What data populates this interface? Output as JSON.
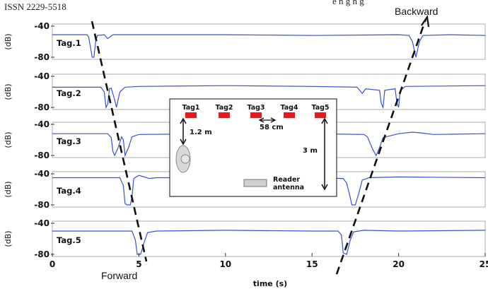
{
  "header": {
    "journal_fragment": "ISSN 2229-5518",
    "title_fragment": "e n g   n g"
  },
  "chart_data": {
    "type": "line",
    "xlabel": "time (s)",
    "xlim": [
      0,
      25
    ],
    "x_ticks": [
      "0",
      "5",
      "10",
      "15",
      "20",
      "25"
    ],
    "ylabel": "(dB)",
    "ylim": [
      -80,
      -40
    ],
    "y_ticks": [
      "-40",
      "-80"
    ],
    "line_color": "#3a4fd6",
    "panels": [
      {
        "name": "Tag.1",
        "baseline": -51,
        "points": [
          [
            0,
            -51
          ],
          [
            2.0,
            -51
          ],
          [
            2.1,
            -54
          ],
          [
            2.2,
            -67
          ],
          [
            2.3,
            -80
          ],
          [
            2.4,
            -80
          ],
          [
            2.5,
            -60
          ],
          [
            2.6,
            -52
          ],
          [
            3.0,
            -51
          ],
          [
            3.2,
            -56
          ],
          [
            3.5,
            -51
          ],
          [
            5,
            -51
          ],
          [
            10,
            -51
          ],
          [
            15,
            -52
          ],
          [
            20,
            -51
          ],
          [
            20.6,
            -52
          ],
          [
            20.8,
            -60
          ],
          [
            21.0,
            -80
          ],
          [
            21.2,
            -60
          ],
          [
            21.4,
            -52
          ],
          [
            23,
            -51
          ],
          [
            25,
            -52
          ]
        ]
      },
      {
        "name": "Tag.2",
        "baseline": -53,
        "points": [
          [
            0,
            -54
          ],
          [
            2.8,
            -54
          ],
          [
            3.0,
            -60
          ],
          [
            3.1,
            -80
          ],
          [
            3.2,
            -76
          ],
          [
            3.3,
            -56
          ],
          [
            3.4,
            -55
          ],
          [
            3.6,
            -70
          ],
          [
            3.7,
            -80
          ],
          [
            3.9,
            -60
          ],
          [
            4.2,
            -54
          ],
          [
            5,
            -53
          ],
          [
            10,
            -52
          ],
          [
            15,
            -53
          ],
          [
            17.6,
            -54
          ],
          [
            17.9,
            -62
          ],
          [
            18.1,
            -56
          ],
          [
            18.9,
            -58
          ],
          [
            19.0,
            -75
          ],
          [
            19.1,
            -80
          ],
          [
            19.2,
            -58
          ],
          [
            19.8,
            -56
          ],
          [
            19.9,
            -74
          ],
          [
            20.0,
            -80
          ],
          [
            20.1,
            -58
          ],
          [
            20.4,
            -53
          ],
          [
            25,
            -52
          ]
        ]
      },
      {
        "name": "Tag.3",
        "baseline": -52,
        "points": [
          [
            0,
            -52
          ],
          [
            3.2,
            -52
          ],
          [
            3.4,
            -57
          ],
          [
            3.5,
            -75
          ],
          [
            3.6,
            -80
          ],
          [
            3.8,
            -70
          ],
          [
            4.0,
            -56
          ],
          [
            4.1,
            -60
          ],
          [
            4.2,
            -80
          ],
          [
            4.4,
            -70
          ],
          [
            4.6,
            -56
          ],
          [
            5,
            -53
          ],
          [
            10,
            -52
          ],
          [
            15,
            -52
          ],
          [
            18.0,
            -53
          ],
          [
            18.2,
            -56
          ],
          [
            18.5,
            -72
          ],
          [
            18.7,
            -80
          ],
          [
            18.9,
            -70
          ],
          [
            19.1,
            -57
          ],
          [
            20,
            -52
          ],
          [
            20.8,
            -50
          ],
          [
            21.3,
            -51
          ],
          [
            22,
            -53
          ],
          [
            25,
            -52
          ]
        ]
      },
      {
        "name": "Tag.4",
        "baseline": -45,
        "points": [
          [
            0,
            -45
          ],
          [
            3.9,
            -45
          ],
          [
            4.1,
            -55
          ],
          [
            4.2,
            -78
          ],
          [
            4.3,
            -80
          ],
          [
            4.5,
            -80
          ],
          [
            4.6,
            -70
          ],
          [
            4.7,
            -46
          ],
          [
            5.0,
            -42
          ],
          [
            5.6,
            -46
          ],
          [
            6,
            -45
          ],
          [
            10,
            -45
          ],
          [
            15,
            -45
          ],
          [
            16.8,
            -46
          ],
          [
            17.0,
            -52
          ],
          [
            17.2,
            -70
          ],
          [
            17.3,
            -80
          ],
          [
            17.5,
            -80
          ],
          [
            17.7,
            -65
          ],
          [
            17.9,
            -48
          ],
          [
            18.3,
            -45
          ],
          [
            20,
            -44
          ],
          [
            25,
            -45
          ]
        ]
      },
      {
        "name": "Tag.5",
        "baseline": -49,
        "points": [
          [
            0,
            -50
          ],
          [
            4.6,
            -50
          ],
          [
            4.8,
            -62
          ],
          [
            4.9,
            -80
          ],
          [
            5.1,
            -80
          ],
          [
            5.3,
            -65
          ],
          [
            5.5,
            -52
          ],
          [
            6,
            -50
          ],
          [
            10,
            -49
          ],
          [
            15,
            -50
          ],
          [
            16.5,
            -50
          ],
          [
            16.7,
            -55
          ],
          [
            16.8,
            -78
          ],
          [
            17.0,
            -80
          ],
          [
            17.2,
            -62
          ],
          [
            17.4,
            -51
          ],
          [
            18,
            -49
          ],
          [
            20,
            -50
          ],
          [
            25,
            -49
          ]
        ]
      }
    ],
    "annotations": {
      "forward": "Forward",
      "backward": "Backward"
    },
    "inset": {
      "tags": [
        "Tag1",
        "Tag2",
        "Tag3",
        "Tag4",
        "Tag5"
      ],
      "tag_color": "#e8181b",
      "distance_vertical": "1.2 m",
      "spacing": "58 cm",
      "distance_range": "3 m",
      "reader_label_line1": "Reader",
      "reader_label_line2": "antenna"
    }
  }
}
